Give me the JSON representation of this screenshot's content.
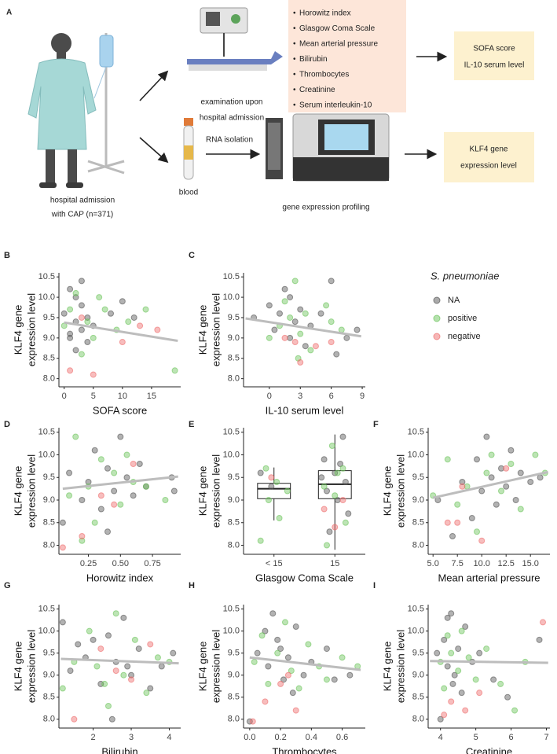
{
  "panel_a": {
    "label": "A",
    "patient_caption": [
      "hospital admission",
      "with CAP (n=371)"
    ],
    "exam_caption": [
      "examination upon",
      "hospital admission"
    ],
    "measures": [
      "Horowitz index",
      "Glasgow Coma Scale",
      "Mean arterial pressure",
      "Bilirubin",
      "Thrombocytes",
      "Creatinine",
      "Serum interleukin-10"
    ],
    "bullet": "•",
    "outcome_1": [
      "SOFA score",
      "IL-10 serum level"
    ],
    "blood": "blood",
    "rna_isolation": "RNA isolation",
    "profiling": "gene expression profiling",
    "outcome_2": [
      "KLF4 gene",
      "expression level"
    ]
  },
  "legend": {
    "title": "S. pneumoniae",
    "items": [
      {
        "name": "NA",
        "color": "#555555"
      },
      {
        "name": "positive",
        "color": "#6cc45c"
      },
      {
        "name": "negative",
        "color": "#ee6d6d"
      }
    ]
  },
  "chart_data": [
    {
      "type": "scatter",
      "label": "B",
      "xlabel": "SOFA score",
      "ylabel": [
        "KLF4 gene",
        "expression level"
      ],
      "xlim": [
        -0.9,
        20
      ],
      "xticks": [
        0,
        5,
        10,
        15
      ],
      "ylim": [
        7.8,
        10.6
      ],
      "yticks": [
        {
          "value": 8,
          "label": "8.0"
        },
        8.5,
        {
          "value": 9,
          "label": "9.0"
        },
        9.5,
        {
          "value": 10,
          "label": "10.0"
        },
        10.5
      ],
      "series": [
        {
          "x": [
            0,
            1,
            1,
            2,
            2,
            3,
            3,
            4,
            4,
            5,
            8,
            10,
            12,
            3,
            2,
            1
          ],
          "values": [
            9.6,
            10.2,
            9.0,
            9.4,
            8.7,
            9.8,
            9.2,
            9.5,
            8.9,
            9.3,
            9.6,
            9.9,
            9.5,
            10.4,
            10.0,
            9.1
          ]
        },
        {
          "x": [
            0,
            1,
            2,
            3,
            4,
            5,
            6,
            7,
            9,
            11,
            14,
            19
          ],
          "values": [
            9.3,
            9.7,
            10.1,
            8.6,
            9.4,
            9.0,
            10.0,
            9.7,
            9.2,
            9.4,
            9.7,
            8.2
          ]
        },
        {
          "x": [
            1,
            3,
            5,
            10,
            13,
            16
          ],
          "values": [
            8.2,
            9.5,
            8.1,
            8.9,
            9.3,
            9.2
          ]
        }
      ],
      "trend": {
        "x": [
          0,
          19.5
        ],
        "y": [
          9.38,
          8.93
        ]
      }
    },
    {
      "type": "scatter",
      "label": "C",
      "xlabel": "IL-10 serum level",
      "ylabel": [
        "KLF4 gene",
        "expression level"
      ],
      "xlim": [
        -2.5,
        9.3
      ],
      "xticks": [
        0,
        3,
        6,
        9
      ],
      "ylim": [
        7.8,
        10.6
      ],
      "yticks": [
        {
          "value": 8,
          "label": "8.0"
        },
        8.5,
        {
          "value": 9,
          "label": "9.0"
        },
        9.5,
        {
          "value": 10,
          "label": "10.0"
        },
        10.5
      ],
      "series": [
        {
          "x": [
            -1.5,
            0,
            0.5,
            1,
            1.5,
            2,
            2.5,
            3,
            3.5,
            4,
            5,
            6,
            6.5,
            8.5,
            7.5,
            2
          ],
          "values": [
            9.5,
            9.8,
            9.2,
            9.6,
            10.2,
            9.0,
            9.4,
            9.7,
            8.8,
            9.3,
            9.6,
            10.4,
            8.6,
            9.2,
            9.0,
            10.0
          ]
        },
        {
          "x": [
            0,
            1,
            1.5,
            2,
            2.5,
            3,
            3.5,
            4,
            5.5,
            6,
            7,
            2.8
          ],
          "values": [
            9.0,
            9.3,
            9.9,
            9.5,
            10.4,
            9.1,
            9.6,
            8.7,
            9.8,
            9.4,
            9.2,
            8.5
          ]
        },
        {
          "x": [
            1.5,
            2.5,
            3,
            4.5,
            6
          ],
          "values": [
            9.0,
            8.9,
            8.4,
            8.8,
            8.9
          ]
        }
      ],
      "trend": {
        "x": [
          -2.3,
          8.9
        ],
        "y": [
          9.48,
          9.04
        ]
      }
    },
    {
      "type": "scatter",
      "label": "D",
      "xlabel": "Horowitz index",
      "ylabel": [
        "KLF4 gene",
        "expression level"
      ],
      "xlim": [
        0.02,
        0.97
      ],
      "xticks": [
        {
          "value": 0.25,
          "label": "0.25"
        },
        {
          "value": 0.5,
          "label": "0.50"
        },
        {
          "value": 0.75,
          "label": "0.75"
        }
      ],
      "ylim": [
        7.8,
        10.6
      ],
      "yticks": [
        {
          "value": 8,
          "label": "8.0"
        },
        8.5,
        {
          "value": 9,
          "label": "9.0"
        },
        9.5,
        {
          "value": 10,
          "label": "10.0"
        },
        10.5
      ],
      "series": [
        {
          "x": [
            0.05,
            0.1,
            0.2,
            0.25,
            0.3,
            0.35,
            0.4,
            0.45,
            0.5,
            0.55,
            0.6,
            0.65,
            0.7,
            0.9,
            0.92,
            0.4
          ],
          "values": [
            8.5,
            9.6,
            9.0,
            9.4,
            10.1,
            8.8,
            9.7,
            9.2,
            10.4,
            9.5,
            9.1,
            9.8,
            9.3,
            9.5,
            9.2,
            8.3
          ]
        },
        {
          "x": [
            0.1,
            0.15,
            0.25,
            0.3,
            0.35,
            0.45,
            0.5,
            0.55,
            0.6,
            0.7,
            0.2,
            0.85
          ],
          "values": [
            9.1,
            10.4,
            9.3,
            8.5,
            9.9,
            9.6,
            8.9,
            10.0,
            9.4,
            9.3,
            8.1,
            9.0
          ]
        },
        {
          "x": [
            0.05,
            0.2,
            0.35,
            0.45,
            0.6
          ],
          "values": [
            7.95,
            8.2,
            9.1,
            8.9,
            9.8
          ]
        }
      ],
      "trend": {
        "x": [
          0.05,
          0.95
        ],
        "y": [
          9.25,
          9.52
        ]
      }
    },
    {
      "type": "box",
      "label": "E",
      "xlabel": "Glasgow Coma Scale",
      "ylabel": [
        "KLF4 gene",
        "expression level"
      ],
      "categories": [
        "< 15",
        "15"
      ],
      "ylim": [
        7.8,
        10.6
      ],
      "yticks": [
        {
          "value": 8,
          "label": "8.0"
        },
        8.5,
        {
          "value": 9,
          "label": "9.0"
        },
        9.5,
        {
          "value": 10,
          "label": "10.0"
        },
        10.5
      ],
      "boxes": [
        {
          "low": 8.55,
          "q1": 9.03,
          "median": 9.25,
          "q3": 9.37,
          "high": 9.72
        },
        {
          "low": 7.9,
          "q1": 9.03,
          "median": 9.35,
          "q3": 9.65,
          "high": 10.45
        }
      ],
      "series": [
        {
          "x": [
            0,
            0,
            1,
            1,
            1,
            1,
            1,
            1,
            1,
            1,
            1,
            1
          ],
          "values": [
            9.6,
            9.3,
            10.4,
            9.9,
            9.6,
            9.4,
            9.2,
            9.0,
            8.7,
            8.3,
            9.8,
            9.5
          ]
        },
        {
          "x": [
            0,
            0,
            0,
            0,
            0,
            0,
            1,
            1,
            1,
            1,
            1,
            1,
            1
          ],
          "values": [
            9.7,
            9.4,
            9.2,
            9.0,
            8.6,
            8.1,
            10.2,
            9.7,
            9.3,
            9.1,
            8.5,
            8.0,
            9.6
          ]
        },
        {
          "x": [
            0,
            1,
            1,
            1
          ],
          "values": [
            9.5,
            9.0,
            8.8,
            8.4
          ]
        }
      ]
    },
    {
      "type": "scatter",
      "label": "F",
      "xlabel": "Mean arterial pressure",
      "ylabel": [
        "KLF4 gene",
        "expression level"
      ],
      "xlim": [
        4.5,
        17
      ],
      "xticks": [
        {
          "value": 5,
          "label": "5.0"
        },
        7.5,
        {
          "value": 10,
          "label": "10.0"
        },
        12.5,
        {
          "value": 15,
          "label": "15.0"
        }
      ],
      "ylim": [
        7.8,
        10.6
      ],
      "yticks": [
        {
          "value": 8,
          "label": "8.0"
        },
        8.5,
        {
          "value": 9,
          "label": "9.0"
        },
        9.5,
        {
          "value": 10,
          "label": "10.0"
        },
        10.5
      ],
      "series": [
        {
          "x": [
            5.5,
            7,
            8,
            9,
            9.5,
            10,
            10.5,
            11,
            11.5,
            12,
            12.5,
            13,
            13.5,
            14,
            15,
            16
          ],
          "values": [
            9.0,
            8.2,
            9.4,
            8.6,
            9.9,
            9.2,
            10.4,
            9.5,
            8.9,
            9.7,
            9.3,
            10.1,
            9.0,
            9.6,
            9.4,
            9.5
          ]
        },
        {
          "x": [
            5,
            6.5,
            7.5,
            8.5,
            9.5,
            10.5,
            11,
            12,
            13,
            14,
            15.5,
            16.5
          ],
          "values": [
            9.1,
            9.9,
            8.9,
            9.3,
            8.3,
            9.6,
            10.0,
            9.2,
            9.8,
            8.8,
            10.0,
            9.6
          ]
        },
        {
          "x": [
            6.5,
            7.5,
            8,
            10,
            12.5
          ],
          "values": [
            8.5,
            8.5,
            9.3,
            8.1,
            9.7
          ]
        }
      ],
      "trend": {
        "x": [
          5,
          16.8
        ],
        "y": [
          9.05,
          9.62
        ]
      }
    },
    {
      "type": "scatter",
      "label": "G",
      "xlabel": "Bilirubin",
      "ylabel": [
        "KLF4 gene",
        "expression level"
      ],
      "xlim": [
        1.1,
        4.3
      ],
      "xticks": [
        2,
        3,
        4
      ],
      "ylim": [
        7.8,
        10.6
      ],
      "yticks": [
        {
          "value": 8,
          "label": "8.0"
        },
        8.5,
        {
          "value": 9,
          "label": "9.0"
        },
        9.5,
        {
          "value": 10,
          "label": "10.0"
        },
        10.5
      ],
      "series": [
        {
          "x": [
            1.2,
            1.4,
            1.6,
            1.8,
            2,
            2.2,
            2.4,
            2.6,
            2.8,
            3,
            3.2,
            3.5,
            3.8,
            4.1,
            2.5,
            2.9
          ],
          "values": [
            10.2,
            9.1,
            9.7,
            9.4,
            9.8,
            8.8,
            9.9,
            9.3,
            10.3,
            9.0,
            9.6,
            8.7,
            9.2,
            9.5,
            8.0,
            9.2
          ]
        },
        {
          "x": [
            1.2,
            1.5,
            1.9,
            2.1,
            2.3,
            2.6,
            2.8,
            3.1,
            3.4,
            3.7,
            4.0,
            2.4
          ],
          "values": [
            8.7,
            9.3,
            10.0,
            9.2,
            8.8,
            10.4,
            9.0,
            9.8,
            8.6,
            9.4,
            9.3,
            8.3
          ]
        },
        {
          "x": [
            1.5,
            2.2,
            2.6,
            3.0,
            3.5
          ],
          "values": [
            8.0,
            9.6,
            9.1,
            8.9,
            9.7
          ]
        }
      ],
      "trend": {
        "x": [
          1.15,
          4.25
        ],
        "y": [
          9.37,
          9.27
        ]
      }
    },
    {
      "type": "scatter",
      "label": "H",
      "xlabel": "Thrombocytes",
      "ylabel": [
        "KLF4 gene",
        "expression level"
      ],
      "xlim": [
        -0.04,
        0.75
      ],
      "xticks": [
        {
          "value": 0,
          "label": "0.0"
        },
        0.2,
        0.4,
        0.6
      ],
      "ylim": [
        7.8,
        10.6
      ],
      "yticks": [
        {
          "value": 8,
          "label": "8.0"
        },
        8.5,
        {
          "value": 9,
          "label": "9.0"
        },
        9.5,
        {
          "value": 10,
          "label": "10.0"
        },
        10.5
      ],
      "series": [
        {
          "x": [
            0.0,
            0.05,
            0.1,
            0.12,
            0.15,
            0.2,
            0.22,
            0.25,
            0.3,
            0.35,
            0.4,
            0.5,
            0.55,
            0.65,
            0.18,
            0.28
          ],
          "values": [
            7.95,
            9.5,
            10.0,
            9.2,
            10.4,
            9.6,
            8.9,
            9.4,
            10.1,
            9.0,
            9.3,
            9.6,
            8.9,
            9.0,
            9.8,
            8.6
          ]
        },
        {
          "x": [
            0.03,
            0.08,
            0.12,
            0.18,
            0.23,
            0.27,
            0.32,
            0.38,
            0.45,
            0.5,
            0.6,
            0.7
          ],
          "values": [
            9.3,
            9.9,
            8.8,
            9.5,
            10.2,
            9.1,
            8.7,
            9.7,
            9.2,
            8.9,
            9.4,
            9.2
          ]
        },
        {
          "x": [
            0.02,
            0.1,
            0.2,
            0.3,
            0.25
          ],
          "values": [
            7.95,
            8.4,
            8.8,
            8.2,
            9.0
          ]
        }
      ],
      "trend": {
        "x": [
          0,
          0.72
        ],
        "y": [
          9.4,
          9.12
        ]
      }
    },
    {
      "type": "scatter",
      "label": "I",
      "xlabel": "Creatinine",
      "ylabel": [
        "KLF4 gene",
        "expression level"
      ],
      "xlim": [
        3.65,
        7.1
      ],
      "xticks": [
        4,
        5,
        6,
        7
      ],
      "ylim": [
        7.8,
        10.6
      ],
      "yticks": [
        {
          "value": 8,
          "label": "8.0"
        },
        8.5,
        {
          "value": 9,
          "label": "9.0"
        },
        9.5,
        {
          "value": 10,
          "label": "10.0"
        },
        10.5
      ],
      "series": [
        {
          "x": [
            3.9,
            4.0,
            4.1,
            4.2,
            4.3,
            4.4,
            4.5,
            4.6,
            4.7,
            4.9,
            5.1,
            5.5,
            5.9,
            6.8,
            4.2,
            4.35
          ],
          "values": [
            9.5,
            8.0,
            9.8,
            9.2,
            10.4,
            9.0,
            9.6,
            8.6,
            10.1,
            9.3,
            9.5,
            8.9,
            8.5,
            9.8,
            10.3,
            8.8
          ]
        },
        {
          "x": [
            4.0,
            4.1,
            4.2,
            4.3,
            4.5,
            4.6,
            4.8,
            5.0,
            5.3,
            5.7,
            6.1,
            6.4
          ],
          "values": [
            9.3,
            8.7,
            9.9,
            9.5,
            9.1,
            10.0,
            9.4,
            8.9,
            9.6,
            8.8,
            8.2,
            9.3
          ]
        },
        {
          "x": [
            4.1,
            4.3,
            4.7,
            5.1,
            6.9
          ],
          "values": [
            8.1,
            8.4,
            8.2,
            8.6,
            10.2
          ]
        }
      ],
      "trend": {
        "x": [
          3.7,
          7.05
        ],
        "y": [
          9.32,
          9.28
        ]
      }
    }
  ]
}
